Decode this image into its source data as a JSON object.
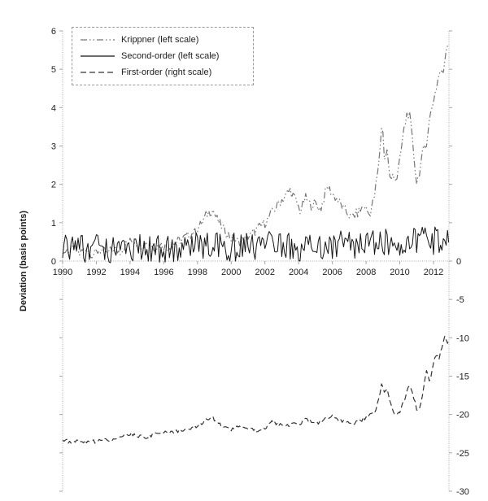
{
  "page": {
    "background": "#ffffff",
    "text_color": "#1d1d1d",
    "axis_color": "#a6a6a6"
  },
  "chart_data": {
    "type": "line",
    "title": "",
    "ylabel": "Deviation (basis points)",
    "legend_position": "top-left",
    "grid": false,
    "x": {
      "min": 1990,
      "max": 2012.92,
      "ticks": [
        1990,
        1992,
        1994,
        1996,
        1998,
        2000,
        2002,
        2004,
        2006,
        2008,
        2010,
        2012
      ]
    },
    "axes": {
      "left": {
        "title": "Deviation (basis points)",
        "min": -6,
        "max": 6,
        "tick_step": 1,
        "label_values": [
          0,
          1,
          2,
          3,
          4,
          5,
          6
        ]
      },
      "right": {
        "title": "",
        "min": -30,
        "max": 30,
        "tick_step": 5,
        "label_values": [
          0,
          -5,
          -10,
          -15,
          -20,
          -25,
          -30
        ]
      }
    },
    "series": [
      {
        "name": "Krippner (left scale)",
        "axis": "left",
        "color": "#767676",
        "dash": "8,3,1.5,3,1.5,3",
        "width": 1.2,
        "noise_amp": 0.13,
        "points": [
          [
            1990.0,
            0.3
          ],
          [
            1990.3,
            0.15
          ],
          [
            1990.6,
            0.35
          ],
          [
            1991.0,
            0.2
          ],
          [
            1991.4,
            0.35
          ],
          [
            1991.8,
            0.15
          ],
          [
            1992.2,
            0.3
          ],
          [
            1992.6,
            0.2
          ],
          [
            1993.0,
            0.3
          ],
          [
            1993.4,
            0.25
          ],
          [
            1993.8,
            0.45
          ],
          [
            1994.2,
            0.55
          ],
          [
            1994.6,
            0.4
          ],
          [
            1995.0,
            0.5
          ],
          [
            1995.4,
            0.35
          ],
          [
            1995.8,
            0.45
          ],
          [
            1996.2,
            0.35
          ],
          [
            1996.6,
            0.45
          ],
          [
            1997.0,
            0.55
          ],
          [
            1997.4,
            0.65
          ],
          [
            1997.8,
            0.75
          ],
          [
            1998.2,
            0.95
          ],
          [
            1998.6,
            1.25
          ],
          [
            1998.9,
            1.35
          ],
          [
            1999.2,
            1.05
          ],
          [
            1999.6,
            0.8
          ],
          [
            2000.0,
            0.6
          ],
          [
            2000.4,
            0.5
          ],
          [
            2000.8,
            0.6
          ],
          [
            2001.2,
            0.7
          ],
          [
            2001.6,
            0.85
          ],
          [
            2002.0,
            1.0
          ],
          [
            2002.4,
            1.25
          ],
          [
            2002.8,
            1.5
          ],
          [
            2003.2,
            1.7
          ],
          [
            2003.5,
            1.85
          ],
          [
            2003.8,
            1.6
          ],
          [
            2004.1,
            1.3
          ],
          [
            2004.4,
            1.65
          ],
          [
            2004.7,
            1.45
          ],
          [
            2005.0,
            1.5
          ],
          [
            2005.3,
            1.35
          ],
          [
            2005.7,
            1.95
          ],
          [
            2006.0,
            1.75
          ],
          [
            2006.3,
            1.6
          ],
          [
            2006.7,
            1.35
          ],
          [
            2007.1,
            1.15
          ],
          [
            2007.5,
            1.25
          ],
          [
            2007.9,
            1.45
          ],
          [
            2008.2,
            1.2
          ],
          [
            2008.5,
            1.7
          ],
          [
            2008.75,
            2.5
          ],
          [
            2008.95,
            3.7
          ],
          [
            2009.1,
            2.6
          ],
          [
            2009.25,
            2.9
          ],
          [
            2009.45,
            2.0
          ],
          [
            2009.6,
            2.3
          ],
          [
            2009.8,
            2.1
          ],
          [
            2010.0,
            2.6
          ],
          [
            2010.2,
            3.3
          ],
          [
            2010.45,
            3.9
          ],
          [
            2010.6,
            3.75
          ],
          [
            2010.8,
            2.9
          ],
          [
            2011.0,
            2.05
          ],
          [
            2011.2,
            2.4
          ],
          [
            2011.4,
            2.9
          ],
          [
            2011.55,
            3.0
          ],
          [
            2011.7,
            3.5
          ],
          [
            2011.85,
            3.9
          ],
          [
            2012.0,
            4.2
          ],
          [
            2012.2,
            4.6
          ],
          [
            2012.4,
            5.0
          ],
          [
            2012.55,
            4.8
          ],
          [
            2012.7,
            5.4
          ],
          [
            2012.85,
            5.75
          ],
          [
            2012.9,
            5.7
          ]
        ]
      },
      {
        "name": "Second-order (left scale)",
        "axis": "left",
        "color": "#141414",
        "dash": "",
        "width": 1.0,
        "noise_amp": 0.38,
        "points": [
          [
            1990.0,
            0.35
          ],
          [
            1991.0,
            0.3
          ],
          [
            1992.0,
            0.32
          ],
          [
            1993.0,
            0.3
          ],
          [
            1994.0,
            0.38
          ],
          [
            1995.0,
            0.35
          ],
          [
            1996.0,
            0.3
          ],
          [
            1997.0,
            0.38
          ],
          [
            1998.0,
            0.42
          ],
          [
            1999.0,
            0.38
          ],
          [
            2000.0,
            0.35
          ],
          [
            2001.0,
            0.38
          ],
          [
            2002.0,
            0.42
          ],
          [
            2003.0,
            0.4
          ],
          [
            2004.0,
            0.36
          ],
          [
            2005.0,
            0.4
          ],
          [
            2006.0,
            0.44
          ],
          [
            2007.0,
            0.42
          ],
          [
            2008.0,
            0.46
          ],
          [
            2009.0,
            0.5
          ],
          [
            2010.0,
            0.46
          ],
          [
            2011.0,
            0.5
          ],
          [
            2012.0,
            0.52
          ],
          [
            2012.9,
            0.58
          ]
        ]
      },
      {
        "name": "First-order (right scale)",
        "axis": "right",
        "color": "#333333",
        "dash": "7,4",
        "width": 1.2,
        "noise_amp": 0.25,
        "points": [
          [
            1990.0,
            -23.3
          ],
          [
            1990.5,
            -23.6
          ],
          [
            1991.0,
            -23.4
          ],
          [
            1991.5,
            -23.6
          ],
          [
            1992.0,
            -23.5
          ],
          [
            1992.5,
            -23.2
          ],
          [
            1993.0,
            -23.3
          ],
          [
            1993.5,
            -22.9
          ],
          [
            1994.0,
            -22.5
          ],
          [
            1994.5,
            -22.8
          ],
          [
            1995.0,
            -22.9
          ],
          [
            1995.5,
            -22.5
          ],
          [
            1996.0,
            -22.2
          ],
          [
            1996.5,
            -22.4
          ],
          [
            1997.0,
            -22.1
          ],
          [
            1997.5,
            -21.8
          ],
          [
            1998.0,
            -21.5
          ],
          [
            1998.4,
            -20.9
          ],
          [
            1998.8,
            -20.2
          ],
          [
            1999.2,
            -21.1
          ],
          [
            1999.6,
            -21.7
          ],
          [
            2000.0,
            -22.1
          ],
          [
            2000.4,
            -21.5
          ],
          [
            2000.8,
            -21.7
          ],
          [
            2001.2,
            -22.0
          ],
          [
            2001.6,
            -22.1
          ],
          [
            2002.0,
            -21.8
          ],
          [
            2002.4,
            -20.9
          ],
          [
            2002.8,
            -21.3
          ],
          [
            2003.2,
            -21.6
          ],
          [
            2003.6,
            -21.2
          ],
          [
            2004.0,
            -21.4
          ],
          [
            2004.4,
            -20.4
          ],
          [
            2004.8,
            -21.0
          ],
          [
            2005.2,
            -21.2
          ],
          [
            2005.6,
            -20.6
          ],
          [
            2006.0,
            -20.3
          ],
          [
            2006.4,
            -20.8
          ],
          [
            2006.8,
            -21.0
          ],
          [
            2007.2,
            -21.2
          ],
          [
            2007.6,
            -20.8
          ],
          [
            2008.0,
            -20.4
          ],
          [
            2008.3,
            -19.9
          ],
          [
            2008.6,
            -19.4
          ],
          [
            2008.95,
            -15.9
          ],
          [
            2009.1,
            -17.4
          ],
          [
            2009.25,
            -16.6
          ],
          [
            2009.5,
            -18.8
          ],
          [
            2009.75,
            -20.1
          ],
          [
            2010.0,
            -19.6
          ],
          [
            2010.3,
            -18.0
          ],
          [
            2010.55,
            -16.0
          ],
          [
            2010.8,
            -17.6
          ],
          [
            2011.0,
            -19.2
          ],
          [
            2011.2,
            -19.5
          ],
          [
            2011.45,
            -15.8
          ],
          [
            2011.6,
            -14.3
          ],
          [
            2011.75,
            -15.7
          ],
          [
            2011.9,
            -14.6
          ],
          [
            2012.05,
            -12.9
          ],
          [
            2012.2,
            -11.9
          ],
          [
            2012.35,
            -12.6
          ],
          [
            2012.5,
            -11.2
          ],
          [
            2012.65,
            -9.9
          ],
          [
            2012.8,
            -10.7
          ],
          [
            2012.9,
            -10.1
          ]
        ]
      }
    ]
  }
}
